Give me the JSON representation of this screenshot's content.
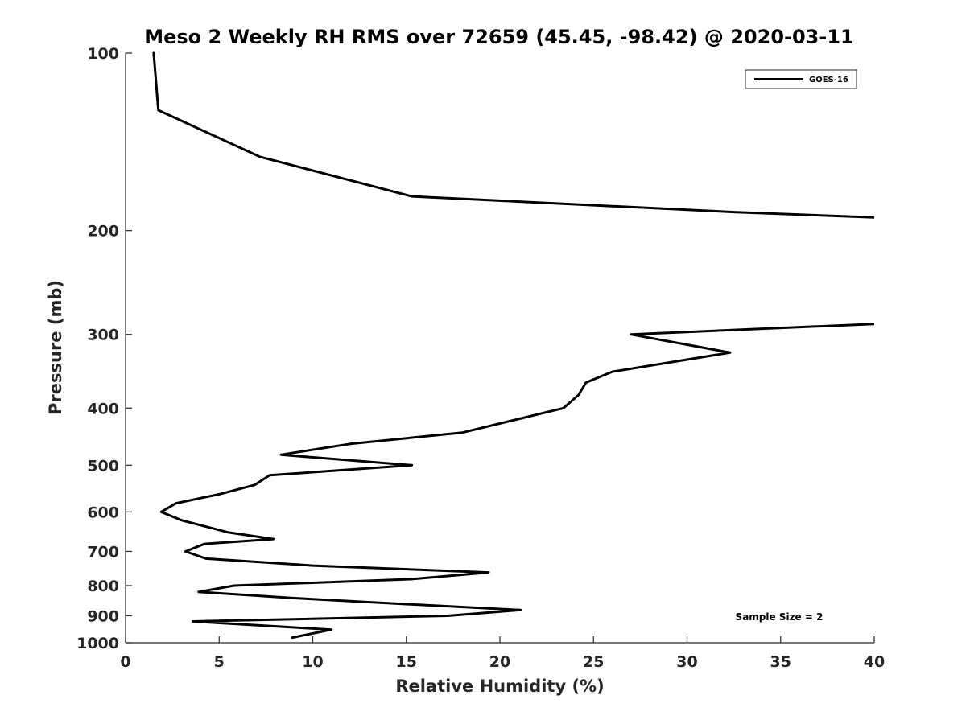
{
  "chart_data": {
    "type": "line",
    "title": "Meso 2 Weekly RH RMS over 72659 (45.45, -98.42) @ 2020-03-11",
    "xlabel": "Relative Humidity (%)",
    "ylabel": "Pressure (mb)",
    "xlim": [
      0,
      40
    ],
    "ylim": [
      100,
      1000
    ],
    "yscale": "log",
    "y_reversed": true,
    "grid": false,
    "x_ticks": [
      0,
      5,
      10,
      15,
      20,
      25,
      30,
      35,
      40
    ],
    "y_ticks": [
      100,
      200,
      300,
      400,
      500,
      600,
      700,
      800,
      900,
      1000
    ],
    "legend": {
      "location": "top-right",
      "entries": [
        "GOES-16"
      ]
    },
    "annotation": "Sample Size = 2",
    "series": [
      {
        "name": "GOES-16",
        "segments": [
          [
            {
              "rh": 1.5,
              "p": 100
            },
            {
              "rh": 1.75,
              "p": 125
            },
            {
              "rh": 7.2,
              "p": 150
            },
            {
              "rh": 15.3,
              "p": 175
            },
            {
              "rh": 32.5,
              "p": 186
            },
            {
              "rh": 40.0,
              "p": 190
            }
          ],
          [
            {
              "rh": 40.0,
              "p": 288
            },
            {
              "rh": 27.0,
              "p": 300
            },
            {
              "rh": 32.3,
              "p": 322
            },
            {
              "rh": 26.0,
              "p": 347
            },
            {
              "rh": 24.6,
              "p": 362
            },
            {
              "rh": 24.2,
              "p": 380
            },
            {
              "rh": 23.4,
              "p": 400
            },
            {
              "rh": 18.0,
              "p": 440
            },
            {
              "rh": 12.0,
              "p": 460
            },
            {
              "rh": 8.3,
              "p": 480
            },
            {
              "rh": 15.3,
              "p": 500
            },
            {
              "rh": 7.7,
              "p": 520
            },
            {
              "rh": 6.9,
              "p": 540
            },
            {
              "rh": 5.0,
              "p": 560
            },
            {
              "rh": 2.7,
              "p": 580
            },
            {
              "rh": 1.9,
              "p": 600
            },
            {
              "rh": 3.0,
              "p": 620
            },
            {
              "rh": 5.5,
              "p": 650
            },
            {
              "rh": 7.9,
              "p": 667
            },
            {
              "rh": 4.2,
              "p": 680
            },
            {
              "rh": 3.2,
              "p": 700
            },
            {
              "rh": 4.3,
              "p": 720
            },
            {
              "rh": 10.0,
              "p": 740
            },
            {
              "rh": 19.4,
              "p": 760
            },
            {
              "rh": 15.3,
              "p": 780
            },
            {
              "rh": 5.8,
              "p": 800
            },
            {
              "rh": 3.9,
              "p": 820
            },
            {
              "rh": 9.0,
              "p": 840
            },
            {
              "rh": 15.0,
              "p": 860
            },
            {
              "rh": 21.1,
              "p": 880
            },
            {
              "rh": 17.2,
              "p": 900
            },
            {
              "rh": 3.6,
              "p": 920
            },
            {
              "rh": 8.5,
              "p": 940
            },
            {
              "rh": 11.0,
              "p": 950
            },
            {
              "rh": 8.9,
              "p": 980
            }
          ]
        ]
      }
    ]
  }
}
